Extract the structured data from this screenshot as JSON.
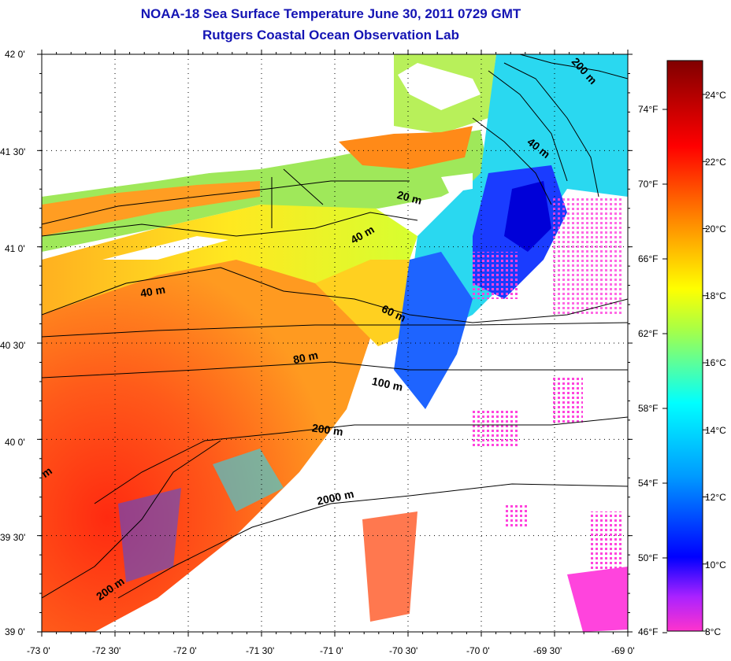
{
  "header": {
    "title": "NOAA-18 Sea Surface Temperature June 30, 2011 0729 GMT",
    "subtitle": "Rutgers Coastal Ocean Observation Lab"
  },
  "map": {
    "lat_ticks": [
      "42 0'",
      "41 30'",
      "41 0'",
      "40 30'",
      "40 0'",
      "39 30'",
      "39 0'"
    ],
    "lon_ticks": [
      "-73 0'",
      "-72 30'",
      "-72 0'",
      "-71 30'",
      "-71 0'",
      "-70 30'",
      "-70 0'",
      "-69 30'",
      "-69 0'"
    ],
    "isobath_labels": [
      "200 m",
      "40 m",
      "20 m",
      "40 m",
      "40 m",
      "60 m",
      "80 m",
      "100 m",
      "200 m",
      "2000 m",
      "200 m",
      "m"
    ]
  },
  "colorbar": {
    "celsius": [
      "24°C",
      "22°C",
      "20°C",
      "18°C",
      "16°C",
      "14°C",
      "12°C",
      "10°C",
      "8°C"
    ],
    "fahrenheit": [
      "74°F",
      "70°F",
      "66°F",
      "62°F",
      "58°F",
      "54°F",
      "50°F",
      "46°F"
    ],
    "colors": [
      "#ff00ff",
      "#0000ff",
      "#00ffff",
      "#ffff00",
      "#ff0000",
      "#800000"
    ]
  }
}
